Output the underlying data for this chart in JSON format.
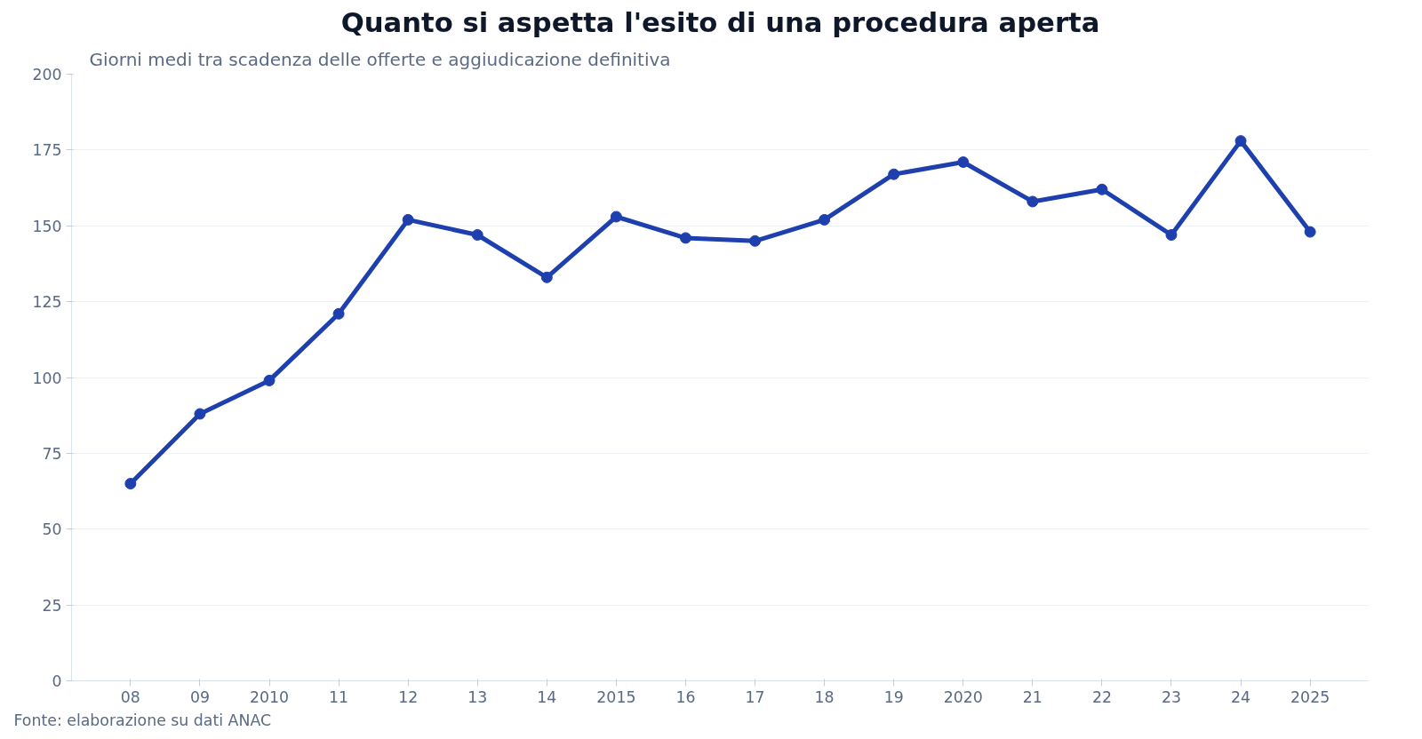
{
  "chart_data": {
    "type": "line",
    "title": "Quanto si aspetta l'esito di una procedura aperta",
    "subtitle": "Giorni medi tra scadenza delle offerte e aggiudicazione definitiva",
    "categories": [
      "08",
      "09",
      "2010",
      "11",
      "12",
      "13",
      "14",
      "2015",
      "16",
      "17",
      "18",
      "19",
      "2020",
      "21",
      "22",
      "23",
      "24",
      "2025"
    ],
    "series": [
      {
        "color": "#1e40af",
        "values": [
          65,
          88,
          99,
          121,
          152,
          147,
          133,
          153,
          146,
          145,
          152,
          167,
          171,
          158,
          162,
          147,
          178,
          148
        ]
      }
    ],
    "ylim": [
      0,
      200
    ],
    "yticks": [
      0,
      25,
      50,
      75,
      100,
      125,
      150,
      175,
      200
    ],
    "grid": "y",
    "marker": "circle",
    "line_style": "solid",
    "annotations": [
      "Fonte: elaborazione su dati ANAC"
    ]
  }
}
